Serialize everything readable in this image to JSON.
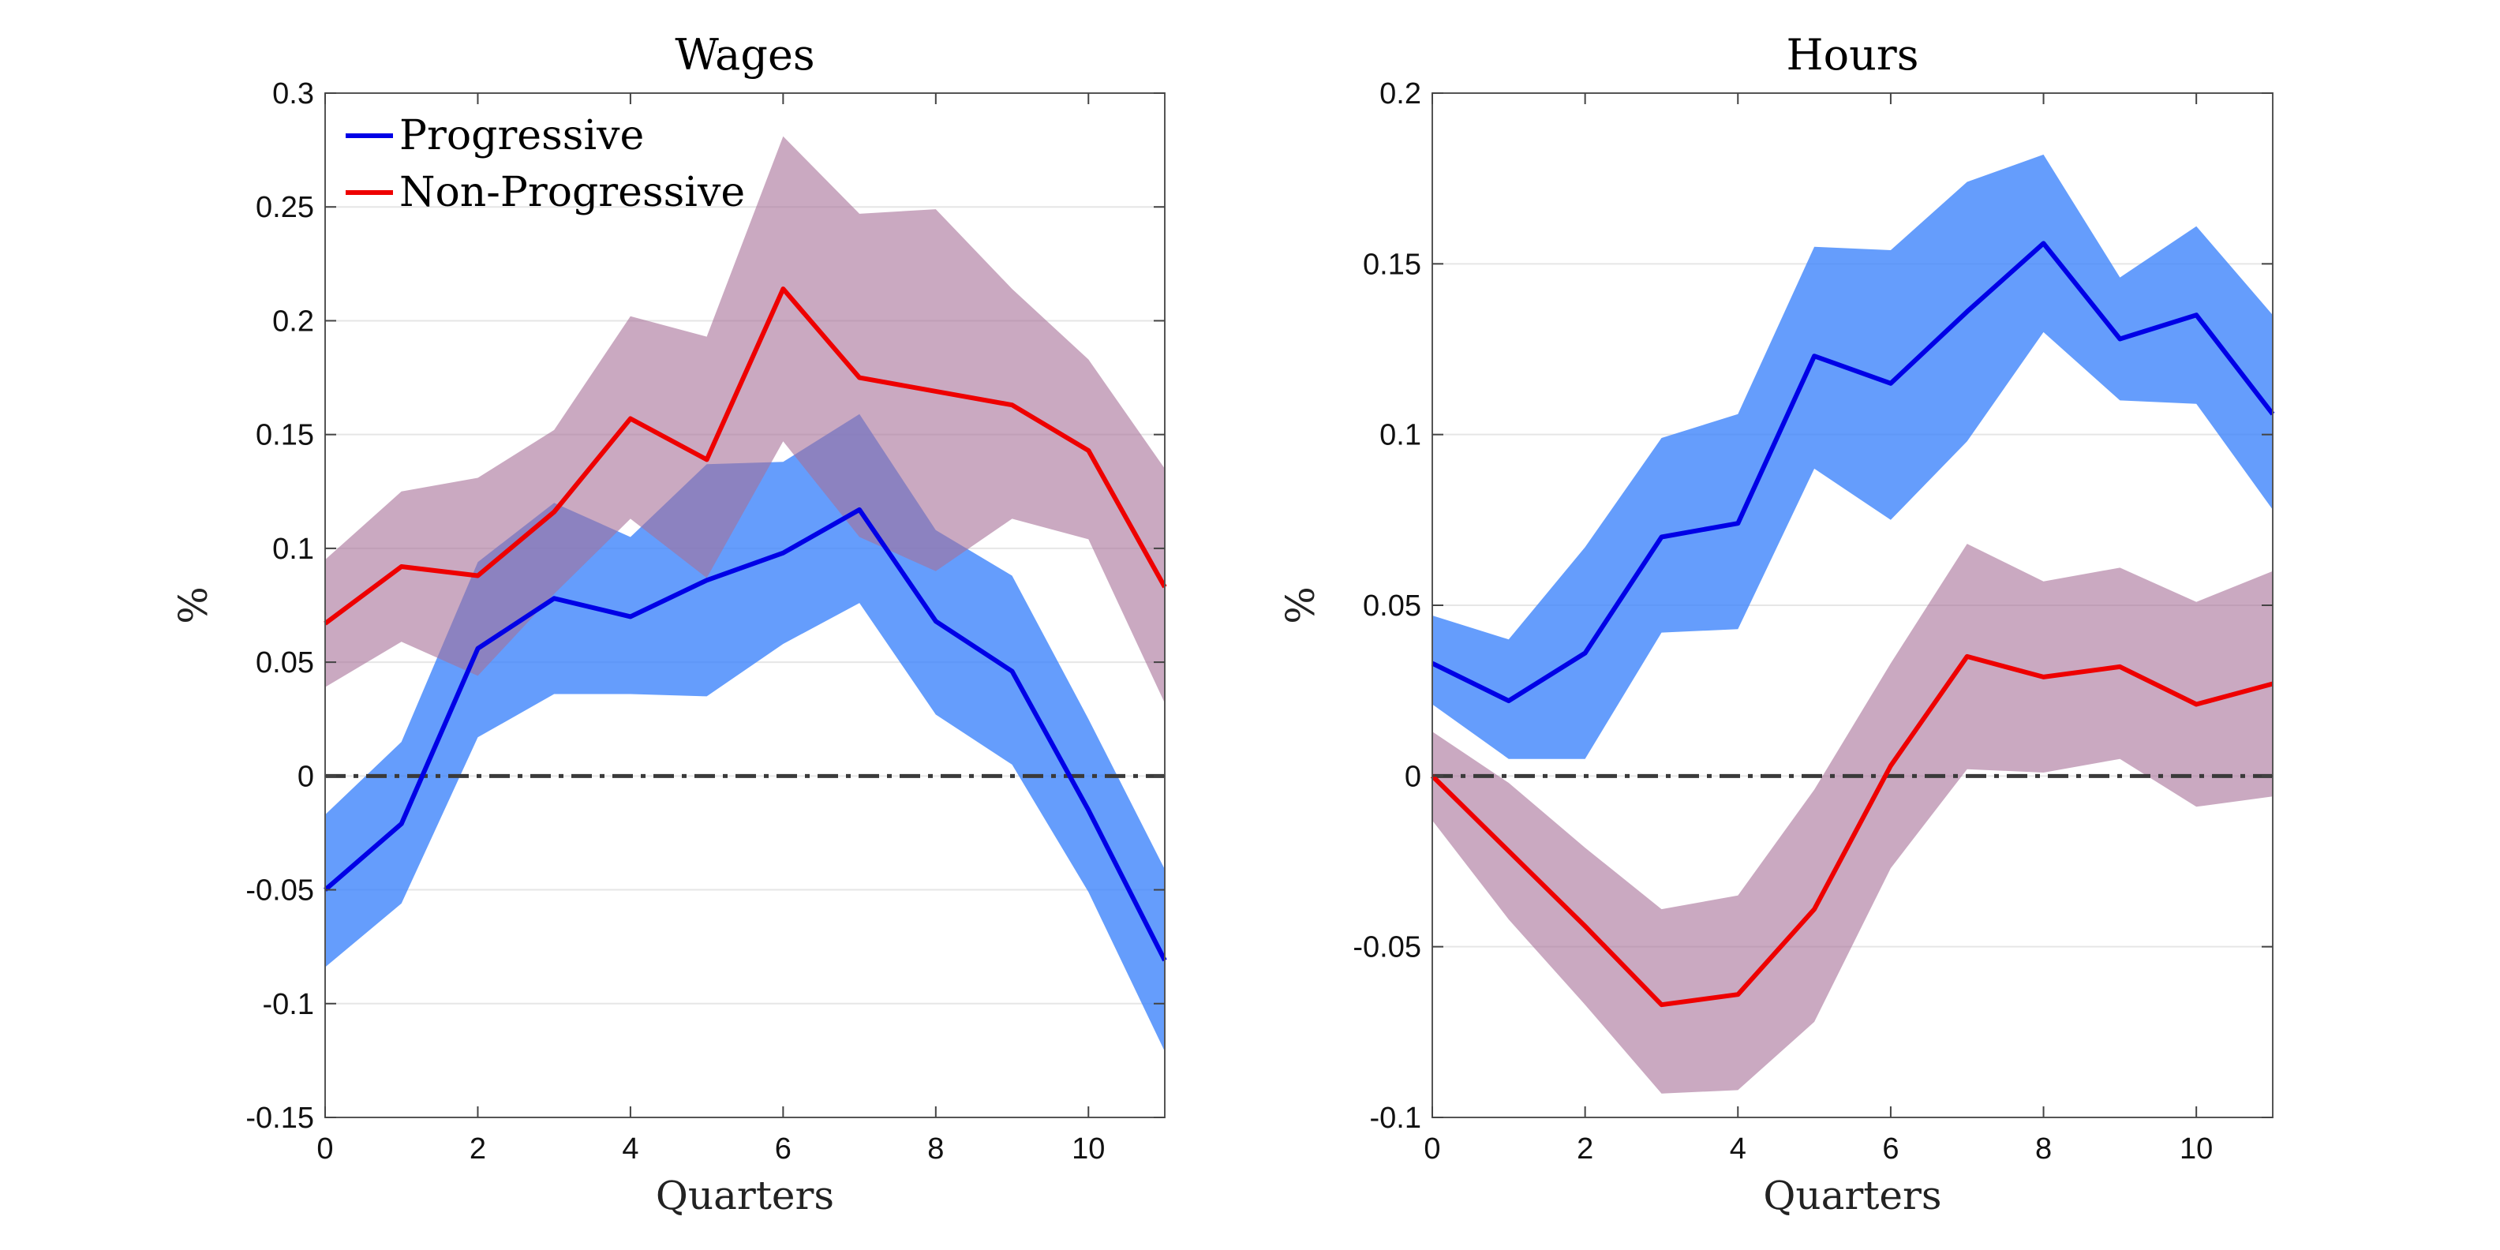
{
  "chart_data": [
    {
      "type": "line",
      "title": "Wages",
      "xlabel": "Quarters",
      "ylabel": "%",
      "xlim": [
        0,
        11
      ],
      "ylim": [
        -0.15,
        0.3
      ],
      "xticks": [
        0,
        2,
        4,
        6,
        8,
        10
      ],
      "yticks": [
        -0.15,
        -0.1,
        -0.05,
        0,
        0.05,
        0.1,
        0.15,
        0.2,
        0.25,
        0.3
      ],
      "ytick_labels": [
        "-0.15",
        "-0.1",
        "-0.05",
        "0",
        "0.05",
        "0.1",
        "0.15",
        "0.2",
        "0.25",
        "0.3"
      ],
      "xtick_labels": [
        "0",
        "2",
        "4",
        "6",
        "8",
        "10"
      ],
      "grid": "horizontal",
      "zero_line": "dash-dot",
      "legend": {
        "position": "top-left",
        "entries": [
          "Progressive",
          "Non-Progressive"
        ]
      },
      "x": [
        0,
        1,
        2,
        3,
        4,
        5,
        6,
        7,
        8,
        9,
        10,
        11
      ],
      "series": [
        {
          "name": "Progressive",
          "color": "#0000e6",
          "band_color": "#3f85fb",
          "values": [
            -0.05,
            -0.021,
            0.056,
            0.078,
            0.07,
            0.086,
            0.098,
            0.117,
            0.068,
            0.046,
            -0.015,
            -0.081
          ],
          "lower": [
            -0.084,
            -0.056,
            0.017,
            0.036,
            0.036,
            0.035,
            0.058,
            0.076,
            0.027,
            0.005,
            -0.051,
            -0.121
          ],
          "upper": [
            -0.017,
            0.015,
            0.094,
            0.12,
            0.105,
            0.137,
            0.138,
            0.159,
            0.108,
            0.088,
            0.025,
            -0.041
          ]
        },
        {
          "name": "Non-Progressive",
          "color": "#ee0000",
          "band_color": "#a66f97",
          "values": [
            0.067,
            0.092,
            0.088,
            0.116,
            0.157,
            0.139,
            0.214,
            0.175,
            0.169,
            0.163,
            0.143,
            0.083
          ],
          "lower": [
            0.039,
            0.059,
            0.044,
            0.08,
            0.113,
            0.087,
            0.147,
            0.105,
            0.09,
            0.113,
            0.104,
            0.032
          ],
          "upper": [
            0.095,
            0.125,
            0.131,
            0.152,
            0.202,
            0.193,
            0.281,
            0.247,
            0.249,
            0.214,
            0.183,
            0.135
          ]
        }
      ]
    },
    {
      "type": "line",
      "title": "Hours",
      "xlabel": "Quarters",
      "ylabel": "%",
      "xlim": [
        0,
        11
      ],
      "ylim": [
        -0.1,
        0.2
      ],
      "xticks": [
        0,
        2,
        4,
        6,
        8,
        10
      ],
      "yticks": [
        -0.1,
        -0.05,
        0,
        0.05,
        0.1,
        0.15,
        0.2
      ],
      "ytick_labels": [
        "-0.1",
        "-0.05",
        "0",
        "0.05",
        "0.1",
        "0.15",
        "0.2"
      ],
      "xtick_labels": [
        "0",
        "2",
        "4",
        "6",
        "8",
        "10"
      ],
      "grid": "horizontal",
      "zero_line": "dash-dot",
      "x": [
        0,
        1,
        2,
        3,
        4,
        5,
        6,
        7,
        8,
        9,
        10,
        11
      ],
      "series": [
        {
          "color": "#0000e6",
          "band_color": "#3f85fb",
          "values": [
            0.033,
            0.022,
            0.036,
            0.07,
            0.074,
            0.123,
            0.115,
            0.136,
            0.156,
            0.128,
            0.135,
            0.106
          ],
          "lower": [
            0.021,
            0.005,
            0.005,
            0.042,
            0.043,
            0.09,
            0.075,
            0.098,
            0.13,
            0.11,
            0.109,
            0.078
          ],
          "upper": [
            0.047,
            0.04,
            0.067,
            0.099,
            0.106,
            0.155,
            0.154,
            0.174,
            0.182,
            0.146,
            0.161,
            0.135
          ]
        },
        {
          "color": "#ee0000",
          "band_color": "#a66f97",
          "values": [
            0.0,
            -0.022,
            -0.044,
            -0.067,
            -0.064,
            -0.039,
            0.003,
            0.035,
            0.029,
            0.032,
            0.021,
            0.027
          ],
          "lower": [
            -0.013,
            -0.042,
            -0.067,
            -0.093,
            -0.092,
            -0.072,
            -0.027,
            0.002,
            0.001,
            0.005,
            -0.009,
            -0.006
          ],
          "upper": [
            0.013,
            -0.002,
            -0.021,
            -0.039,
            -0.035,
            -0.004,
            0.033,
            0.068,
            0.057,
            0.061,
            0.051,
            0.06
          ]
        }
      ]
    }
  ]
}
